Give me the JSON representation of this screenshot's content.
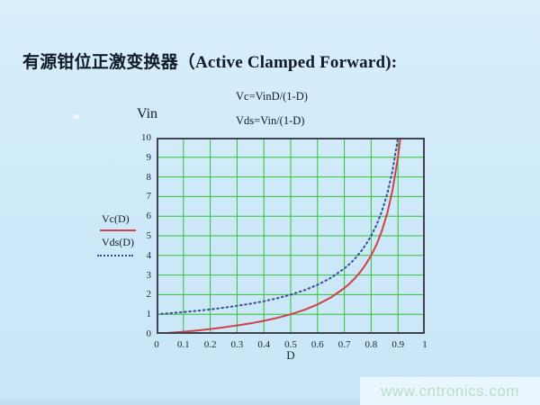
{
  "page": {
    "title": "有源钳位正激变换器（Active Clamped Forward):"
  },
  "annotations": {
    "vin_label": "Vin",
    "formula_vc": "Vc=VinD/(1-D)",
    "formula_vds": "Vds=Vin/(1-D)"
  },
  "colors": {
    "background": "#cde9f9",
    "grid": "#2ec32e",
    "frame": "#3f444c",
    "vc_curve": "#d04048",
    "vds_curve": "#3a4aa0",
    "text": "#101a2b",
    "watermark_text": "#b7e0c2",
    "watermark_band": "#e9f6fd"
  },
  "chart_data": {
    "type": "line",
    "title": "",
    "xlabel": "D",
    "ylabel": "Vin",
    "xlim": [
      0,
      1
    ],
    "ylim": [
      0,
      10
    ],
    "grid": true,
    "grid_color": "#2ec32e",
    "legend_position": "left-outside",
    "x_ticks": [
      "0",
      "0.1",
      "0.2",
      "0.3",
      "0.4",
      "0.5",
      "0.6",
      "0.7",
      "0.8",
      "0.9",
      "1"
    ],
    "y_ticks": [
      "0",
      "1",
      "2",
      "3",
      "4",
      "5",
      "6",
      "7",
      "8",
      "9",
      "10"
    ],
    "x": [
      0,
      0.05,
      0.1,
      0.15,
      0.2,
      0.25,
      0.3,
      0.35,
      0.4,
      0.45,
      0.5,
      0.55,
      0.6,
      0.65,
      0.7,
      0.72,
      0.74,
      0.76,
      0.78,
      0.8,
      0.82,
      0.84,
      0.86,
      0.88,
      0.9,
      0.91
    ],
    "series": [
      {
        "name": "Vc(D)",
        "formula": "Vc=VinD/(1-D)",
        "style": "solid",
        "color": "#d04048",
        "values": [
          0,
          0.053,
          0.111,
          0.176,
          0.25,
          0.333,
          0.429,
          0.538,
          0.667,
          0.818,
          1,
          1.222,
          1.5,
          1.857,
          2.333,
          2.571,
          2.846,
          3.167,
          3.545,
          4,
          4.556,
          5.25,
          6.143,
          7.333,
          9,
          10.111
        ]
      },
      {
        "name": "Vds(D)",
        "formula": "Vds=Vin/(1-D)",
        "style": "dotted",
        "color": "#3a4aa0",
        "values": [
          1,
          1.053,
          1.111,
          1.176,
          1.25,
          1.333,
          1.429,
          1.538,
          1.667,
          1.818,
          2,
          2.222,
          2.5,
          2.857,
          3.333,
          3.571,
          3.846,
          4.167,
          4.545,
          5,
          5.556,
          6.25,
          7.143,
          8.333,
          10,
          11.111
        ]
      }
    ]
  },
  "watermark": {
    "text": "www.cntronics.com"
  }
}
